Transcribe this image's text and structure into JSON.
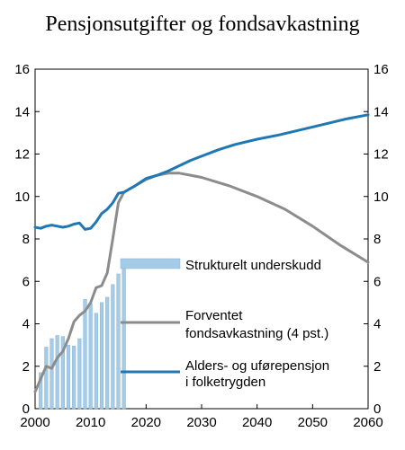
{
  "chart_data": {
    "type": "bar+line",
    "title": "Pensjonsutgifter og fondsavkastning",
    "xlabel": "",
    "ylabel": "",
    "xlim": [
      2000,
      2060
    ],
    "ylim": [
      0,
      16
    ],
    "x_ticks": [
      2000,
      2010,
      2020,
      2030,
      2040,
      2050,
      2060
    ],
    "y_ticks": [
      0,
      2,
      4,
      6,
      8,
      10,
      12,
      14,
      16
    ],
    "grid": false,
    "dual_y_axis_same_scale": true,
    "colors": {
      "bar": "#a6cbe6",
      "bar_edge": "#7fb3d9",
      "forventet": "#8c8c8c",
      "alders": "#1f77b4"
    },
    "bars": {
      "name": "Strukturelt underskudd",
      "x": [
        2001,
        2002,
        2003,
        2004,
        2005,
        2006,
        2007,
        2008,
        2009,
        2010,
        2011,
        2012,
        2013,
        2014,
        2015,
        2016
      ],
      "values": [
        1.7,
        2.9,
        3.3,
        3.45,
        3.4,
        3.0,
        2.95,
        3.3,
        5.15,
        4.95,
        4.5,
        5.0,
        5.25,
        5.85,
        6.35,
        7.05
      ]
    },
    "series": [
      {
        "name": "Forventet fondsavkastning (4 pst.)",
        "x": [
          2000,
          2001,
          2002,
          2003,
          2004,
          2005,
          2006,
          2007,
          2008,
          2009,
          2010,
          2011,
          2012,
          2013,
          2014,
          2015,
          2016,
          2018,
          2020,
          2022,
          2024,
          2026,
          2028,
          2030,
          2035,
          2040,
          2045,
          2050,
          2055,
          2060
        ],
        "values": [
          0.8,
          1.4,
          2.0,
          1.9,
          2.4,
          2.7,
          3.3,
          4.1,
          4.4,
          4.6,
          5.0,
          5.7,
          5.8,
          6.4,
          8.0,
          9.7,
          10.2,
          10.5,
          10.8,
          11.0,
          11.1,
          11.1,
          11.0,
          10.9,
          10.5,
          10.0,
          9.4,
          8.6,
          7.7,
          6.9
        ]
      },
      {
        "name": "Alders- og uførepensjon i folketrygden",
        "x": [
          2000,
          2001,
          2002,
          2003,
          2004,
          2005,
          2006,
          2007,
          2008,
          2009,
          2010,
          2011,
          2012,
          2013,
          2014,
          2015,
          2016,
          2018,
          2020,
          2022,
          2024,
          2026,
          2028,
          2030,
          2033,
          2036,
          2040,
          2044,
          2048,
          2052,
          2056,
          2060
        ],
        "values": [
          8.55,
          8.5,
          8.6,
          8.65,
          8.6,
          8.55,
          8.6,
          8.7,
          8.75,
          8.45,
          8.5,
          8.8,
          9.2,
          9.4,
          9.7,
          10.15,
          10.2,
          10.5,
          10.85,
          11.0,
          11.2,
          11.45,
          11.7,
          11.9,
          12.2,
          12.45,
          12.7,
          12.9,
          13.15,
          13.4,
          13.65,
          13.85
        ]
      }
    ],
    "legend": {
      "placement": "lower-center",
      "entries": [
        {
          "label_lines": [
            "Strukturelt underskudd"
          ],
          "series": "bars"
        },
        {
          "label_lines": [
            "Forventet",
            "fondsavkastning (4 pst.)"
          ],
          "series": "forventet"
        },
        {
          "label_lines": [
            "Alders- og uførepensjon",
            "i  folketrygden"
          ],
          "series": "alders"
        }
      ]
    }
  }
}
